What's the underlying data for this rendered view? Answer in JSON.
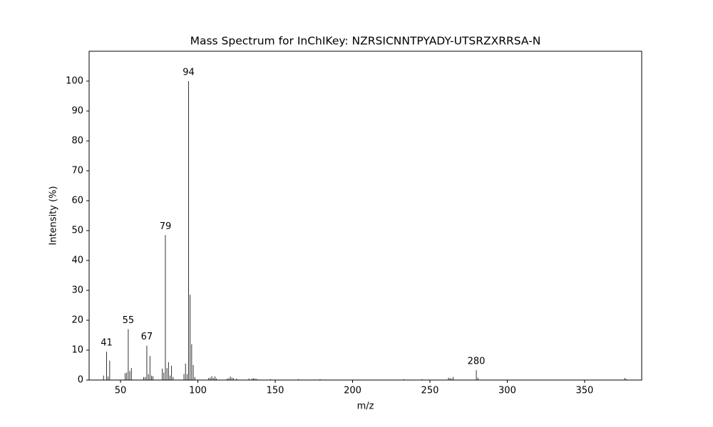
{
  "chart_data": {
    "type": "stem",
    "title": "Mass Spectrum for InChIKey: NZRSICNNTPYADY-UTSRZXRRSA-N",
    "xlabel": "m/z",
    "ylabel": "Intensity (%)",
    "color": "#000000",
    "x": [
      39,
      41,
      42,
      43,
      53,
      54,
      55,
      56,
      57,
      65,
      66,
      67,
      68,
      69,
      70,
      71,
      77,
      78,
      79,
      80,
      81,
      82,
      83,
      84,
      91,
      92,
      93,
      94,
      95,
      96,
      97,
      98,
      107,
      108,
      109,
      110,
      111,
      112,
      119,
      120,
      121,
      122,
      123,
      125,
      133,
      135,
      136,
      137,
      138,
      147,
      165,
      179,
      233,
      245,
      262,
      263,
      264,
      265,
      280,
      281,
      376,
      377
    ],
    "values": [
      1.5,
      9.5,
      1.2,
      6.5,
      2.3,
      2.5,
      17,
      3,
      4,
      1,
      1,
      11.5,
      2,
      8,
      1.5,
      1.3,
      3.8,
      2.5,
      48.5,
      4,
      6,
      1.5,
      4.8,
      1,
      2,
      5.5,
      2,
      100,
      28.5,
      12,
      5,
      1,
      0.7,
      0.8,
      1.3,
      0.7,
      1.2,
      0.5,
      0.5,
      0.6,
      1.2,
      0.8,
      0.6,
      0.5,
      0.5,
      0.5,
      0.6,
      0.5,
      0.4,
      0.3,
      0.3,
      0.3,
      0.3,
      0.3,
      0.8,
      0.7,
      0.4,
      1,
      3.3,
      0.8,
      0.7,
      0.3
    ],
    "annotations": [
      41,
      55,
      67,
      79,
      94,
      280
    ],
    "xlim": [
      29.7,
      386.9
    ],
    "ylim": [
      0,
      110
    ],
    "xticks": [
      50,
      100,
      150,
      200,
      250,
      300,
      350
    ],
    "yticks": [
      0,
      10,
      20,
      30,
      40,
      50,
      60,
      70,
      80,
      90,
      100
    ]
  }
}
